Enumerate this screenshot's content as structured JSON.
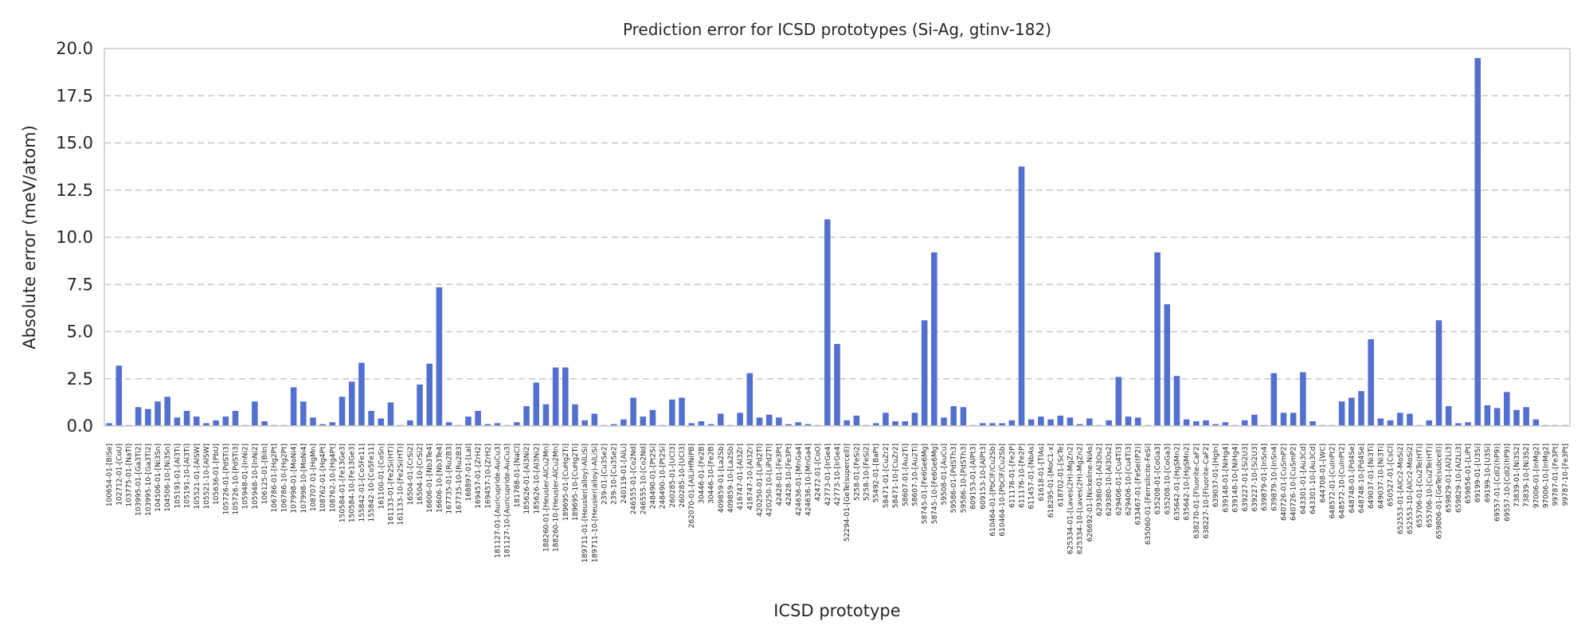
{
  "chart_data": {
    "type": "bar",
    "title": "Prediction error for ICSD prototypes (Si-Ag, gtinv-182)",
    "xlabel": "ICSD prototype",
    "ylabel": "Absolute error (meV/atom)",
    "ylim": [
      0,
      20
    ],
    "yticks": [
      "0.0",
      "2.5",
      "5.0",
      "7.5",
      "10.0",
      "12.5",
      "15.0",
      "17.5",
      "20.0"
    ],
    "grid": "y-dashed",
    "bar_color": "#5470cf",
    "categories": [
      "100654-01-[BiSe]",
      "102712-01-[CoU]",
      "103775-01-[NaTl]",
      "103995-01-[Ga3Ti2]",
      "103995-10-[Ga3Ti2]",
      "104506-01-[Ni3Sn]",
      "104506-10-[Ni3Sn]",
      "105191-01-[Al3Ti]",
      "105191-10-[Al3Ti]",
      "105521-01-[AlSW]",
      "105521-10-[AlSW]",
      "105636-01-[PbU]",
      "105726-01-[PdSTi3]",
      "105726-10-[PdSTi3]",
      "105948-01-[InNi2]",
      "105948-10-[InNi2]",
      "106125-01-[BiIn]",
      "106786-01-[Hg2Pt]",
      "106786-10-[Hg2Pt]",
      "107998-01-[MoNi4]",
      "107998-10-[MoNi4]",
      "108707-01-[HgMn]",
      "108762-01-[Hg4Pt]",
      "108762-10-[Hg4Pt]",
      "150584-01-[Fe13Ge3]",
      "150584-10-[Fe13Ge3]",
      "155842-01-[Co5Fe11]",
      "155842-10-[Co5Fe11]",
      "161100-01-[CoSn]",
      "161133-01-[Fe2Si(HT)]",
      "161133-10-[Fe2Si(HT)]",
      "16504-01-[CrSi2]",
      "16504-10-[CrSi2]",
      "16606-01-[Nb3Te4]",
      "16606-10-[Nb3Te4]",
      "167735-01-[Ru2B3]",
      "167735-10-[Ru2B3]",
      "168897-01-[LaI]",
      "169457-01-[ZrH2]",
      "169457-10-[ZrH2]",
      "181127-01-[Auricupride-AuCu3]",
      "181127-10-[Auricupride-AuCu3]",
      "181788-01-[NaCl]",
      "185626-01-[Al3Ni2]",
      "185626-10-[Al3Ni2]",
      "188260-01-[Heusler-AlCu2Mn]",
      "188260-10-[Heusler-AlCu2Mn]",
      "189695-01-[CuHg2Ti]",
      "189695-10-[CuHg2Ti]",
      "189711-01-[Heusler(alloy)-AlLiSi]",
      "189711-10-[Heusler(alloy)-AlLiSi]",
      "239-01-[Cu3Se2]",
      "239-10-[Cu3Se2]",
      "240119-01-[AlLi]",
      "246555-01-[Co2Nd]",
      "246555-10-[Co2Nd]",
      "248490-01-[Pt2Si]",
      "248490-10-[Pt2Si]",
      "260285-01-[UCl3]",
      "260285-10-[UCl3]",
      "262070-01-[AlLiHfNiPB]",
      "30446-01-[Fe2B]",
      "30446-10-[Fe2B]",
      "409859-01-[La2Sb]",
      "409859-10-[La2Sb]",
      "416747-01-[Al3Zr]",
      "416747-10-[Al3Zr]",
      "420250-01-[LiPd2Tl]",
      "420250-10-[LiPd2Tl]",
      "42428-01-[Fe3Pt]",
      "42428-10-[Fe3Pt]",
      "424636-01-[MnGa4]",
      "424636-10-[MnGa4]",
      "42472-01-[CoO]",
      "42773-01-[IrGe4]",
      "42773-10-[IrGe4]",
      "52294-01-[GeTe(supercell)]",
      "5258-01-[FeSi2]",
      "5258-10-[FeSi2]",
      "55492-01-[BaPt]",
      "58471-01-[CuZr2]",
      "58471-10-[CuZr2]",
      "58607-01-[Au2Ti]",
      "58607-10-[Au2Ti]",
      "58745-01-[Fe6Ge6Mg]",
      "58745-10-[Fe6Ge6Mg]",
      "59508-01-[AuCu]",
      "59586-01-[PdSTh3]",
      "59586-10-[PdSTh3]",
      "609153-01-[AlPt3]",
      "609153-10-[AlPt3]",
      "610464-01-[PbClF/Cu2Sb]",
      "610464-10-[PbClF/Cu2Sb]",
      "611176-01-[Fe2P]",
      "611176-10-[Fe2P]",
      "611457-01-[NbAs]",
      "61618-01-[TlAs]",
      "618295-01-[MoC1-x]",
      "618702-01-[ScTe]",
      "625334-01-[Laves(2H)-MgZn2]",
      "625334-10-[Laves(2H)-MgZn2]",
      "626692-01-[Nickeline-NiAs]",
      "629380-01-[Al3Os2]",
      "629380-10-[Al3Os2]",
      "629406-01-[Cu4Ti3]",
      "629406-10-[Cu4Ti3]",
      "633467-01-[FeSe(tP2)]",
      "635060-01-[Ferrsilicite-FeSi]",
      "635208-01-[CoGa3]",
      "635208-10-[CoGa3]",
      "635642-01-[HgSMn2]",
      "635642-10-[HgSMn2]",
      "638270-01-[Fluorite-CaF2]",
      "638227-10-[Fluorite-CaF2]",
      "639037-01-[HgIn]",
      "639148-01-[NiHg4]",
      "639148-10-[NiHg4]",
      "639227-01-[Si2U3]",
      "639227-10-[Si2U3]",
      "639879-01-[InSn4]",
      "639879-10-[InSn4]",
      "640726-01-[CuSmP2]",
      "640726-10-[CuSmP2]",
      "643301-01-[Au3Cd]",
      "643301-10-[Au3Cd]",
      "644708-01-[WC]",
      "648572-01-[CuInPt2]",
      "648572-10-[CuInPt2]",
      "648748-01-[Pd4Se]",
      "648748-10-[Pd4Se]",
      "649037-01-[Ni3Ti]",
      "649037-10-[Ni3Ti]",
      "650527-01-[CsCl]",
      "652553-01-[AlCr2-MoSi2]",
      "652553-10-[AlCr2-MoSi2]",
      "655706-01-[Cu2Te(HT)]",
      "655706-10-[Cu2Te(HT)]",
      "659806-01-[GeTe(subcell)]",
      "659829-01-[Al2Li3]",
      "659829-10-[Al2Li3]",
      "659856-01-[LiPt]",
      "69199-01-[U3Si]",
      "69199-10-[U3Si]",
      "69557-01-[CdI2(hP9)]",
      "69557-10-[CdI2(hP9)]",
      "73839-01-[Ni3S2]",
      "73839-10-[Ni3S2]",
      "97006-01-[InMg2]",
      "97006-10-[InMg2]",
      "99787-01-[Fe3Pt]",
      "99787-10-[Fe3Pt]"
    ],
    "values": [
      0.15,
      3.2,
      0.05,
      1.0,
      0.9,
      1.3,
      1.55,
      0.45,
      0.8,
      0.5,
      0.15,
      0.3,
      0.5,
      0.8,
      0.05,
      1.3,
      0.25,
      0.05,
      0.05,
      2.05,
      1.3,
      0.45,
      0.1,
      0.2,
      1.55,
      2.35,
      3.35,
      0.8,
      0.4,
      1.25,
      0.05,
      0.3,
      2.2,
      3.3,
      7.35,
      0.2,
      0.05,
      0.5,
      0.8,
      0.1,
      0.15,
      0.05,
      0.2,
      1.05,
      2.3,
      1.15,
      3.1,
      3.1,
      1.15,
      0.3,
      0.65,
      0.05,
      0.1,
      0.35,
      1.5,
      0.5,
      0.85,
      0.05,
      1.4,
      1.5,
      0.15,
      0.25,
      0.1,
      0.65,
      0.05,
      0.7,
      2.8,
      0.45,
      0.6,
      0.45,
      0.1,
      0.2,
      0.1,
      0.05,
      10.95,
      4.35,
      0.3,
      0.55,
      0.05,
      0.15,
      0.7,
      0.25,
      0.25,
      0.7,
      5.6,
      9.2,
      0.45,
      1.05,
      1.0,
      0.05,
      0.15,
      0.15,
      0.15,
      0.3,
      13.75,
      0.35,
      0.5,
      0.35,
      0.55,
      0.45,
      0.1,
      0.4,
      0.05,
      0.3,
      2.6,
      0.5,
      0.45,
      0.05,
      9.2,
      6.45,
      2.65,
      0.35,
      0.25,
      0.3,
      0.1,
      0.2,
      0.05,
      0.3,
      0.6,
      0.05,
      2.8,
      0.7,
      0.7,
      2.85,
      0.25,
      0.05,
      0.05,
      1.3,
      1.5,
      1.85,
      4.6,
      0.4,
      0.3,
      0.7,
      0.65,
      0.05,
      0.3,
      5.6,
      1.05,
      0.15,
      0.2,
      19.5,
      1.1,
      0.95,
      1.8,
      0.85,
      1.0,
      0.35,
      0.05,
      0.05,
      0.05
    ]
  }
}
